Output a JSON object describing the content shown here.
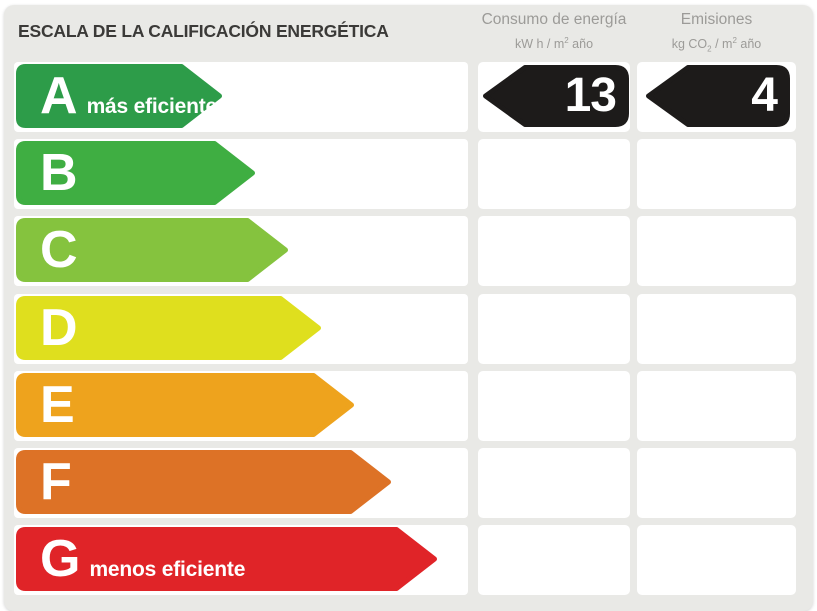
{
  "title": "ESCALA DE LA CALIFICACIÓN ENERGÉTICA",
  "columns": {
    "consumption": {
      "label": "Consumo de energía",
      "unit": {
        "pre": "kW h / m",
        "sup": "2",
        "post": " año"
      }
    },
    "emissions": {
      "label": "Emisiones",
      "unit": {
        "pre": "kg CO",
        "sub": "2",
        "mid": " / m",
        "sup": "2",
        "post": " año"
      }
    }
  },
  "ratings": [
    {
      "letter": "A",
      "note": "más eficiente",
      "color": "#2D9C49",
      "arrow_width": 222,
      "consumption": "13",
      "emissions": "4",
      "badge_color": "#1D1B1A"
    },
    {
      "letter": "B",
      "note": "",
      "color": "#3FAE42",
      "arrow_width": 255
    },
    {
      "letter": "C",
      "note": "",
      "color": "#85C33E",
      "arrow_width": 288
    },
    {
      "letter": "D",
      "note": "",
      "color": "#DFDF1E",
      "arrow_width": 321
    },
    {
      "letter": "E",
      "note": "",
      "color": "#EEA31D",
      "arrow_width": 354
    },
    {
      "letter": "F",
      "note": "",
      "color": "#DD7226",
      "arrow_width": 391
    },
    {
      "letter": "G",
      "note": "menos eficiente",
      "color": "#E02428",
      "arrow_width": 437
    }
  ],
  "layout_colors": {
    "card_background": "#E9E9E6",
    "row_background": "#FFFFFF",
    "header_text": "#9C9B98",
    "title_text": "#3B3A38"
  },
  "chart_data": {
    "type": "bar",
    "title": "ESCALA DE LA CALIFICACIÓN ENERGÉTICA",
    "categories": [
      "A",
      "B",
      "C",
      "D",
      "E",
      "F",
      "G"
    ],
    "bar_colors": [
      "#2D9C49",
      "#3FAE42",
      "#85C33E",
      "#DFDF1E",
      "#EEA31D",
      "#DD7226",
      "#E02428"
    ],
    "bar_relative_lengths": [
      222,
      255,
      288,
      321,
      354,
      391,
      437
    ],
    "annotations": {
      "A": "más eficiente",
      "G": "menos eficiente"
    },
    "columns": [
      "Consumo de energía (kW h / m² año)",
      "Emisiones (kg CO₂ / m² año)"
    ],
    "values": {
      "rating_row": "A",
      "consumption": 13,
      "emissions": 4
    },
    "legend_position": "none",
    "grid": false
  }
}
